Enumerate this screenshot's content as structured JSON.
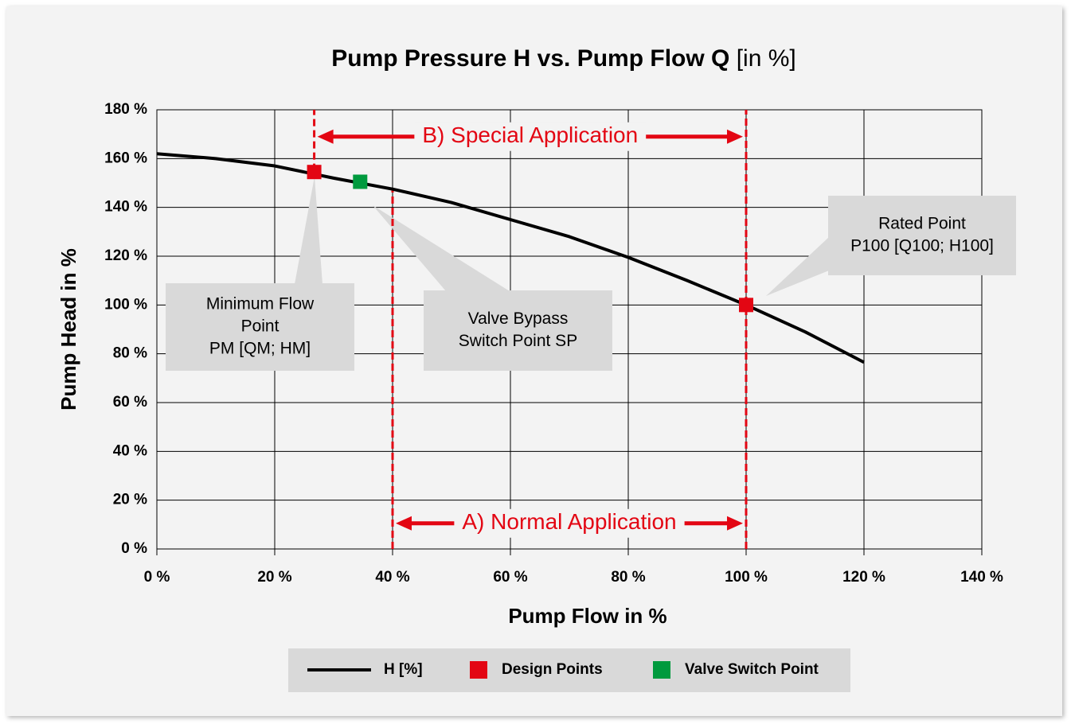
{
  "chart_data": {
    "type": "line",
    "title": "Pump Pressure H vs. Pump Flow Q",
    "title_unit": "[in %]",
    "x_label": "Pump Flow in %",
    "y_label": "Pump Head in %",
    "xlim": [
      0,
      140
    ],
    "ylim": [
      0,
      180
    ],
    "xticks": [
      {
        "value": 0,
        "label": "0 %"
      },
      {
        "value": 20,
        "label": "20 %"
      },
      {
        "value": 40,
        "label": "40 %"
      },
      {
        "value": 60,
        "label": "60 %"
      },
      {
        "value": 80,
        "label": "80 %"
      },
      {
        "value": 100,
        "label": "100 %"
      },
      {
        "value": 120,
        "label": "120 %"
      },
      {
        "value": 140,
        "label": "140 %"
      }
    ],
    "yticks": [
      {
        "value": 0,
        "label": "0 %"
      },
      {
        "value": 20,
        "label": "20 %"
      },
      {
        "value": 40,
        "label": "40 %"
      },
      {
        "value": 60,
        "label": "60 %"
      },
      {
        "value": 80,
        "label": "80 %"
      },
      {
        "value": 100,
        "label": "100 %"
      },
      {
        "value": 120,
        "label": "120 %"
      },
      {
        "value": 140,
        "label": "140 %"
      },
      {
        "value": 160,
        "label": "160 %"
      },
      {
        "value": 180,
        "label": "180 %"
      }
    ],
    "grid": true,
    "series": [
      {
        "name": "H [%]",
        "mark": "line",
        "color": "#000000",
        "x": [
          0,
          10,
          20,
          30,
          40,
          50,
          60,
          70,
          80,
          90,
          100,
          110,
          120
        ],
        "values": [
          162,
          160,
          157,
          152,
          147.5,
          142,
          135,
          128,
          119.5,
          110,
          100,
          89,
          76.5
        ]
      },
      {
        "name": "Design Points",
        "mark": "square",
        "color": "#e30613",
        "x": [
          26.7,
          100
        ],
        "values": [
          154.5,
          100
        ]
      },
      {
        "name": "Valve Switch Point",
        "mark": "square",
        "color": "#009a3e",
        "x": [
          34.5
        ],
        "values": [
          150.5
        ]
      }
    ],
    "ranges": [
      {
        "label": "B) Special Application",
        "from": 26.7,
        "to": 100,
        "at": 169
      },
      {
        "label": "A) Normal Application",
        "from": 40,
        "to": 100,
        "at": 10.5
      }
    ],
    "vlines": [
      {
        "x": 26.7,
        "from": 155,
        "to": 180
      },
      {
        "x": 40,
        "from": 0,
        "to": 148
      },
      {
        "x": 100,
        "from": 0,
        "to": 180
      }
    ],
    "annotations": [
      {
        "lines": [
          "Minimum Flow",
          "Point",
          "PM [QM; HM]"
        ]
      },
      {
        "lines": [
          "Valve Bypass",
          "Switch Point SP"
        ]
      },
      {
        "lines": [
          "Rated Point",
          "P100 [Q100; H100]"
        ]
      }
    ]
  }
}
